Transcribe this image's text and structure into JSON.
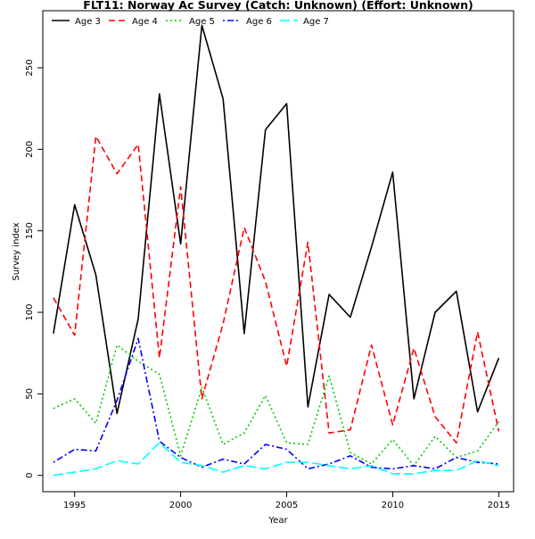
{
  "chart_data": {
    "type": "line",
    "title": "FLT11: Norway Ac Survey (Catch: Unknown) (Effort: Unknown)",
    "xlabel": "Year",
    "ylabel": "Survey index",
    "xlim": [
      1993.5,
      2015.7
    ],
    "ylim": [
      -10,
      285
    ],
    "x_ticks": [
      1995,
      2000,
      2005,
      2010,
      2015
    ],
    "y_ticks": [
      0,
      50,
      100,
      150,
      200,
      250
    ],
    "grid": false,
    "legend_position": "top",
    "x": [
      1994,
      1995,
      1996,
      1997,
      1998,
      1999,
      2000,
      2001,
      2002,
      2003,
      2004,
      2005,
      2006,
      2007,
      2008,
      2009,
      2010,
      2011,
      2012,
      2013,
      2014,
      2015
    ],
    "series": [
      {
        "name": "Age 3",
        "color": "#000000",
        "dash": "solid",
        "values": [
          87,
          166,
          123,
          38,
          96,
          234,
          142,
          276,
          231,
          87,
          212,
          228,
          42,
          111,
          97,
          140,
          186,
          47,
          100,
          113,
          39,
          72
        ]
      },
      {
        "name": "Age 4",
        "color": "#ff0000",
        "dash": "dashed",
        "values": [
          109,
          86,
          208,
          185,
          203,
          72,
          177,
          47,
          93,
          152,
          119,
          67,
          143,
          26,
          28,
          80,
          31,
          78,
          36,
          20,
          88,
          27
        ]
      },
      {
        "name": "Age 5",
        "color": "#00cc00",
        "dash": "dotted",
        "values": [
          41,
          47,
          32,
          80,
          70,
          62,
          12,
          54,
          19,
          26,
          49,
          20,
          19,
          61,
          14,
          7,
          22,
          6,
          24,
          11,
          15,
          33
        ]
      },
      {
        "name": "Age 6",
        "color": "#0000ff",
        "dash": "dotdash",
        "values": [
          8,
          16,
          15,
          46,
          84,
          21,
          11,
          5,
          10,
          7,
          19,
          16,
          4,
          7,
          12,
          5,
          4,
          6,
          4,
          11,
          8,
          7
        ]
      },
      {
        "name": "Age 7",
        "color": "#00ffff",
        "dash": "longdash",
        "values": [
          0,
          2,
          4,
          9,
          7,
          20,
          8,
          6,
          2,
          6,
          4,
          8,
          8,
          6,
          4,
          6,
          1,
          1,
          3,
          3,
          9,
          6
        ]
      }
    ]
  }
}
